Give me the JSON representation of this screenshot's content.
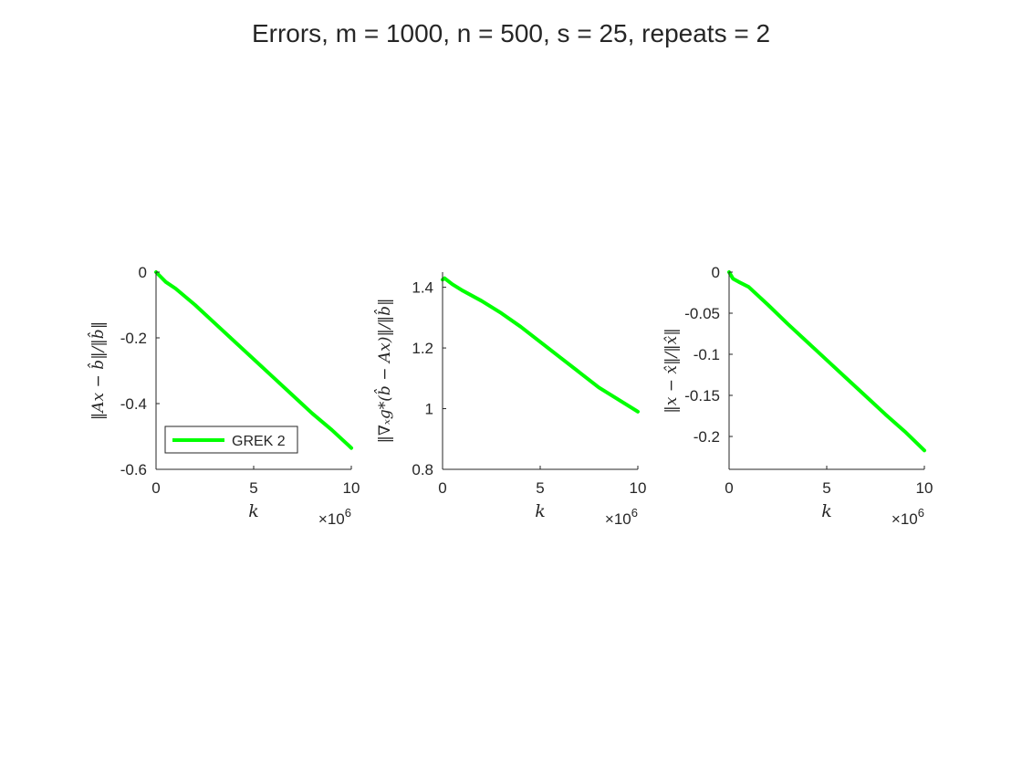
{
  "title": "Errors, m = 1000, n = 500, s = 25, repeats = 2",
  "colors": {
    "series": "#00ff00",
    "band": "#9cff9c",
    "axis": "#262626"
  },
  "chart_data": [
    {
      "type": "line",
      "xlabel": "k",
      "ylabel": "‖Ax − b̂‖/‖b̂‖",
      "x_exponent_label": "×10^6",
      "xlim": [
        0,
        10
      ],
      "ylim": [
        -0.6,
        0
      ],
      "x_ticks": [
        "0",
        "5",
        "10"
      ],
      "y_ticks": [
        "0",
        "-0.2",
        "-0.4",
        "-0.6"
      ],
      "legend": {
        "entries": [
          "GREK 2"
        ],
        "location": "bottom-left"
      },
      "series": [
        {
          "name": "GREK 2",
          "x": [
            0,
            0.5,
            1,
            2,
            3,
            4,
            5,
            6,
            7,
            8,
            9,
            10
          ],
          "y": [
            0,
            -0.03,
            -0.05,
            -0.1,
            -0.155,
            -0.21,
            -0.265,
            -0.32,
            -0.375,
            -0.43,
            -0.48,
            -0.535
          ]
        }
      ]
    },
    {
      "type": "line",
      "xlabel": "k",
      "ylabel": "‖∇ₓg*(b̂ − Ax)‖/‖b̂‖",
      "x_exponent_label": "×10^6",
      "xlim": [
        0,
        10
      ],
      "ylim": [
        0.8,
        1.45
      ],
      "x_ticks": [
        "0",
        "5",
        "10"
      ],
      "y_ticks": [
        "1.4",
        "1.2",
        "1",
        "0.8"
      ],
      "series": [
        {
          "x": [
            0,
            0.1,
            0.5,
            1,
            2,
            3,
            4,
            5,
            6,
            7,
            8,
            9,
            10
          ],
          "y": [
            1.425,
            1.43,
            1.41,
            1.39,
            1.355,
            1.315,
            1.27,
            1.22,
            1.17,
            1.12,
            1.07,
            1.03,
            0.99
          ]
        }
      ]
    },
    {
      "type": "line",
      "xlabel": "k",
      "ylabel": "‖x − x̂‖/‖x̂‖",
      "x_exponent_label": "×10^6",
      "xlim": [
        0,
        10
      ],
      "ylim": [
        -0.24,
        0
      ],
      "x_ticks": [
        "0",
        "5",
        "10"
      ],
      "y_ticks": [
        "0",
        "-0.05",
        "-0.1",
        "-0.15",
        "-0.2"
      ],
      "series": [
        {
          "x": [
            0,
            0.05,
            0.2,
            0.5,
            1,
            2,
            3,
            4,
            5,
            6,
            7,
            8,
            9,
            10
          ],
          "y": [
            0,
            -0.002,
            -0.008,
            -0.012,
            -0.018,
            -0.04,
            -0.063,
            -0.085,
            -0.107,
            -0.129,
            -0.151,
            -0.173,
            -0.194,
            -0.217
          ]
        }
      ]
    }
  ]
}
